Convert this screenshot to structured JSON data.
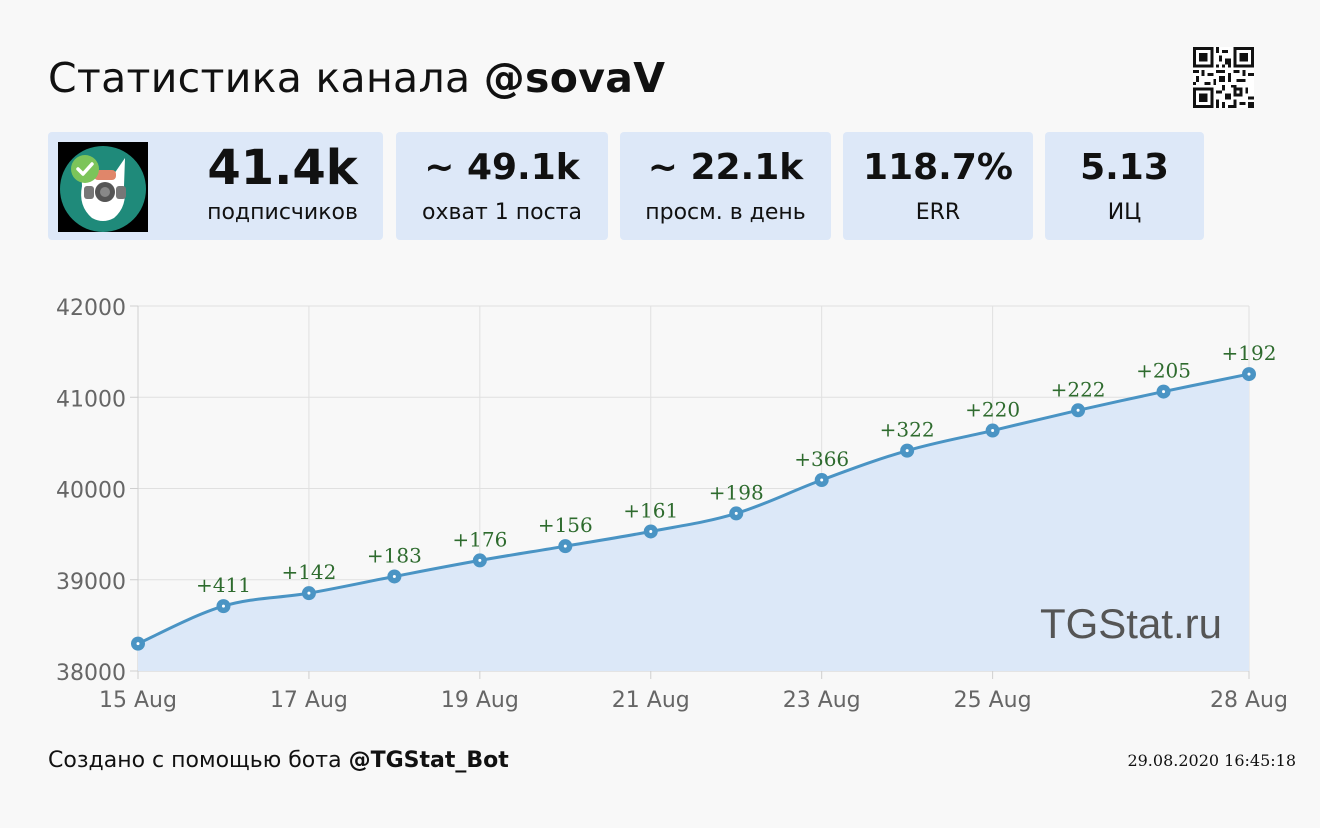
{
  "header": {
    "title_prefix": "Статистика канала ",
    "title_handle": "@sovaV"
  },
  "stats": [
    {
      "value": "41.4k",
      "label": "подписчиков"
    },
    {
      "value": "~ 49.1k",
      "label": "охват 1 поста"
    },
    {
      "value": "~ 22.1k",
      "label": "просм. в день"
    },
    {
      "value": "118.7%",
      "label": "ERR"
    },
    {
      "value": "5.13",
      "label": "ИЦ"
    }
  ],
  "chart_data": {
    "type": "area",
    "x": [
      "15 Aug",
      "16 Aug",
      "17 Aug",
      "18 Aug",
      "19 Aug",
      "20 Aug",
      "21 Aug",
      "22 Aug",
      "23 Aug",
      "24 Aug",
      "25 Aug",
      "26 Aug",
      "27 Aug",
      "28 Aug"
    ],
    "x_tick_labels": [
      "15 Aug",
      "17 Aug",
      "19 Aug",
      "21 Aug",
      "23 Aug",
      "25 Aug",
      "28 Aug"
    ],
    "values": [
      38300,
      38711,
      38853,
      39036,
      39212,
      39368,
      39529,
      39727,
      40093,
      40415,
      40635,
      40857,
      41062,
      41254
    ],
    "data_labels": [
      "",
      "+411",
      "+142",
      "+183",
      "+176",
      "+156",
      "+161",
      "+198",
      "+366",
      "+322",
      "+220",
      "+222",
      "+205",
      "+192"
    ],
    "y_ticks": [
      "42000",
      "41000",
      "40000",
      "39000",
      "38000"
    ],
    "ylim": [
      38000,
      42000
    ],
    "grid": true,
    "watermark": "TGStat.ru",
    "colors": {
      "line": "#4a94c4",
      "fill": "#dce8f8",
      "label": "#2e6b2e",
      "grid": "#e0e0e0",
      "axis": "#cfcfcf",
      "tick_text": "#666666"
    }
  },
  "footer": {
    "prefix": "Создано с помощью бота ",
    "bot": "@TGStat_Bot",
    "timestamp": "29.08.2020 16:45:18"
  }
}
